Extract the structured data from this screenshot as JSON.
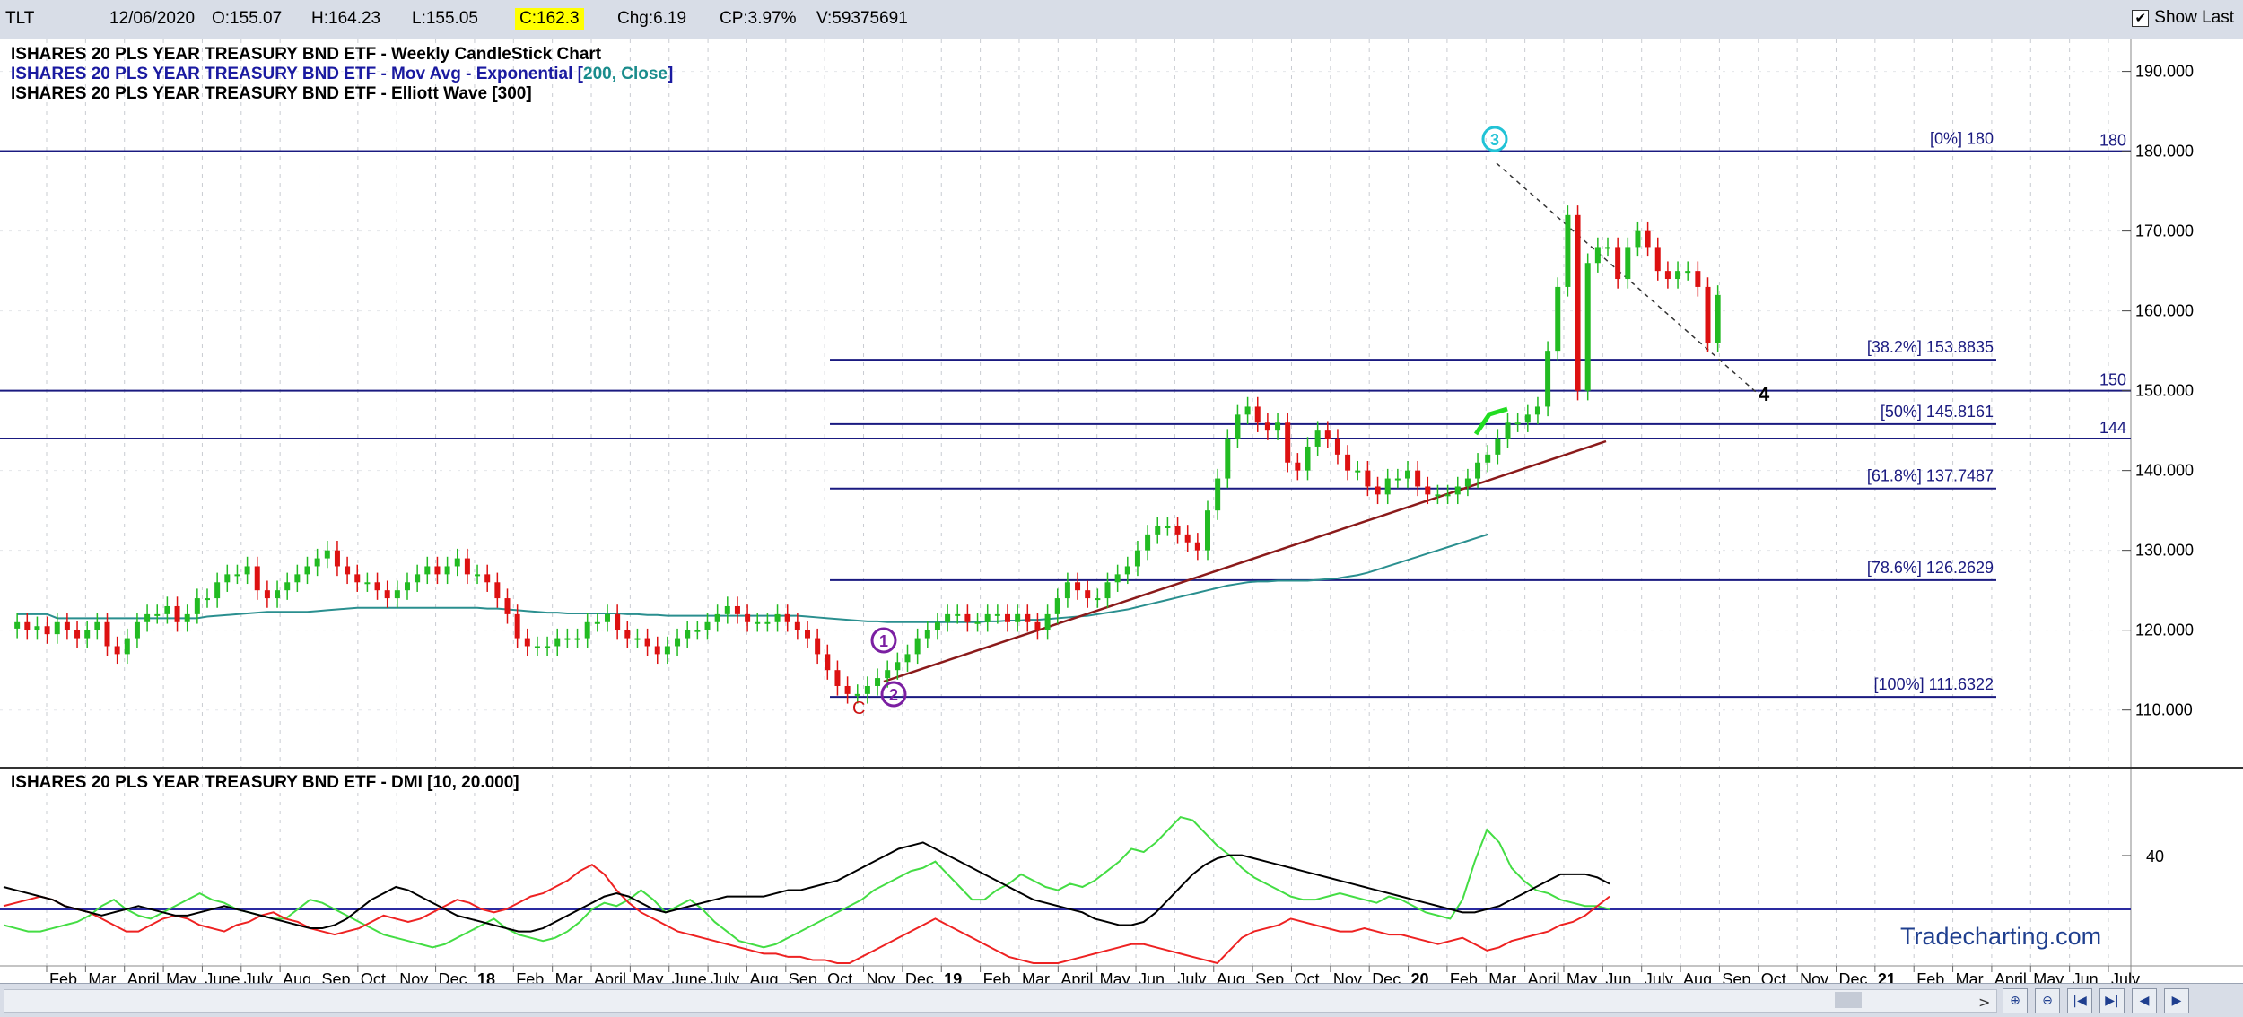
{
  "toolbar": {
    "symbol": "TLT",
    "date": "12/06/2020",
    "open": "O:155.07",
    "high": "H:164.23",
    "low": "L:155.05",
    "close": "C:162.3",
    "change": "Chg:6.19",
    "change_pct": "CP:3.97%",
    "volume": "V:59375691",
    "show_last_label": "Show Last",
    "show_last_checked": true
  },
  "main_panel": {
    "legend": [
      {
        "text": "ISHARES 20 PLS YEAR TREASURY BND ETF - Weekly CandleStick Chart",
        "color": "#000000"
      },
      {
        "text_prefix": "ISHARES 20 PLS YEAR TREASURY BND ETF - Mov Avg - Exponential [",
        "text_param": "200, Close",
        "text_suffix": "]",
        "color": "#1a1aa0",
        "param_color": "#1a8c8c"
      },
      {
        "text": "ISHARES 20 PLS YEAR TREASURY BND ETF - Elliott Wave [300]",
        "color": "#000000"
      }
    ],
    "price_axis": [
      "190.000",
      "180.000",
      "170.000",
      "160.000",
      "150.000",
      "140.000",
      "130.000",
      "120.000",
      "110.000"
    ],
    "fib_levels": [
      {
        "label": "[0%] 180",
        "value": 180
      },
      {
        "label": "[38.2%] 153.8835",
        "value": 153.8835
      },
      {
        "label": "[50%] 145.8161",
        "value": 145.8161
      },
      {
        "label": "[61.8%] 137.7487",
        "value": 137.7487
      },
      {
        "label": "[78.6%] 126.2629",
        "value": 126.2629
      },
      {
        "label": "[100%] 111.6322",
        "value": 111.6322
      }
    ],
    "horizontal_lines": [
      {
        "label": "180",
        "value": 180
      },
      {
        "label": "150",
        "value": 150
      },
      {
        "label": "144",
        "value": 144
      }
    ],
    "wave_labels": {
      "c": "C",
      "one": "1",
      "two": "2",
      "three": "3",
      "four": "4"
    },
    "colors": {
      "up": "#22bb22",
      "down": "#dd1111",
      "ema": "#2a8f8f",
      "hline": "#1a1a80",
      "trend": "#8b1a1a"
    }
  },
  "dmi_panel": {
    "title": "ISHARES 20 PLS YEAR TREASURY BND ETF - DMI [10, 20.000]",
    "axis_label": "40",
    "watermark": "Tradecharting.com"
  },
  "time_axis": [
    {
      "label": "Feb",
      "bold": false
    },
    {
      "label": "Mar",
      "bold": false
    },
    {
      "label": "April",
      "bold": false
    },
    {
      "label": "May",
      "bold": false
    },
    {
      "label": "June",
      "bold": false
    },
    {
      "label": "July",
      "bold": false
    },
    {
      "label": "Aug",
      "bold": false
    },
    {
      "label": "Sep",
      "bold": false
    },
    {
      "label": "Oct",
      "bold": false
    },
    {
      "label": "Nov",
      "bold": false
    },
    {
      "label": "Dec",
      "bold": false
    },
    {
      "label": "18",
      "bold": true
    },
    {
      "label": "Feb",
      "bold": false
    },
    {
      "label": "Mar",
      "bold": false
    },
    {
      "label": "April",
      "bold": false
    },
    {
      "label": "May",
      "bold": false
    },
    {
      "label": "June",
      "bold": false
    },
    {
      "label": "July",
      "bold": false
    },
    {
      "label": "Aug",
      "bold": false
    },
    {
      "label": "Sep",
      "bold": false
    },
    {
      "label": "Oct",
      "bold": false
    },
    {
      "label": "Nov",
      "bold": false
    },
    {
      "label": "Dec",
      "bold": false
    },
    {
      "label": "19",
      "bold": true
    },
    {
      "label": "Feb",
      "bold": false
    },
    {
      "label": "Mar",
      "bold": false
    },
    {
      "label": "April",
      "bold": false
    },
    {
      "label": "May",
      "bold": false
    },
    {
      "label": "Jun",
      "bold": false
    },
    {
      "label": "July",
      "bold": false
    },
    {
      "label": "Aug",
      "bold": false
    },
    {
      "label": "Sep",
      "bold": false
    },
    {
      "label": "Oct",
      "bold": false
    },
    {
      "label": "Nov",
      "bold": false
    },
    {
      "label": "Dec",
      "bold": false
    },
    {
      "label": "20",
      "bold": true
    },
    {
      "label": "Feb",
      "bold": false
    },
    {
      "label": "Mar",
      "bold": false
    },
    {
      "label": "April",
      "bold": false
    },
    {
      "label": "May",
      "bold": false
    },
    {
      "label": "Jun",
      "bold": false
    },
    {
      "label": "July",
      "bold": false
    },
    {
      "label": "Aug",
      "bold": false
    },
    {
      "label": "Sep",
      "bold": false
    },
    {
      "label": "Oct",
      "bold": false
    },
    {
      "label": "Nov",
      "bold": false
    },
    {
      "label": "Dec",
      "bold": false
    },
    {
      "label": "21",
      "bold": true
    },
    {
      "label": "Feb",
      "bold": false
    },
    {
      "label": "Mar",
      "bold": false
    },
    {
      "label": "April",
      "bold": false
    },
    {
      "label": "May",
      "bold": false
    },
    {
      "label": "Jun",
      "bold": false
    },
    {
      "label": "July",
      "bold": false
    }
  ],
  "chart_data": {
    "type": "candlestick",
    "price_range": [
      103,
      194
    ],
    "series": [
      {
        "name": "weekly_close",
        "x_start": 1,
        "values": [
          121,
          120,
          120.5,
          119.5,
          121,
          120,
          119,
          120,
          121,
          118,
          117,
          119,
          121,
          122,
          122,
          123,
          121,
          122,
          124,
          124,
          126,
          127,
          127,
          128,
          125,
          124,
          125,
          126,
          127,
          128,
          129,
          130,
          128,
          127,
          126,
          126,
          125,
          124,
          125,
          126,
          127,
          128,
          127,
          128,
          129,
          127,
          127,
          126,
          124,
          122,
          119,
          118,
          118,
          118,
          119,
          119,
          119,
          121,
          121,
          122,
          120,
          119,
          119,
          118,
          117,
          118,
          119,
          120,
          120,
          121,
          122,
          123,
          122,
          121,
          121,
          121,
          122,
          121,
          120,
          119,
          117,
          115,
          113,
          112,
          112,
          113,
          114,
          115,
          116,
          117,
          119,
          120,
          121,
          122,
          122,
          121,
          121,
          122,
          122,
          121,
          122,
          121,
          120,
          122,
          124,
          126,
          125,
          124,
          124,
          126,
          127,
          128,
          130,
          132,
          133,
          133,
          132,
          131,
          130,
          135,
          139,
          144,
          147,
          148,
          146,
          145,
          146,
          141,
          140,
          143,
          145,
          144,
          142,
          140,
          140,
          138,
          137,
          139,
          139,
          140,
          138,
          137,
          137,
          137,
          138,
          139,
          141,
          142,
          144,
          146,
          146,
          147,
          148,
          155,
          163,
          172,
          150,
          166,
          168,
          168,
          164,
          168,
          170,
          168,
          165,
          164,
          165,
          165,
          163,
          156,
          162
        ]
      },
      {
        "name": "ema_200",
        "x_start": 1,
        "values": [
          122,
          122,
          122,
          122,
          121.5,
          121.5,
          121.5,
          121.5,
          121.5,
          121.5,
          121.5,
          121.5,
          121.5,
          121.5,
          121.5,
          121.5,
          121.5,
          121.5,
          121.5,
          121.7,
          121.8,
          121.9,
          122,
          122.1,
          122.2,
          122.3,
          122.3,
          122.3,
          122.3,
          122.3,
          122.4,
          122.5,
          122.6,
          122.7,
          122.8,
          122.8,
          122.8,
          122.8,
          122.8,
          122.8,
          122.8,
          122.8,
          122.8,
          122.8,
          122.8,
          122.8,
          122.8,
          122.7,
          122.7,
          122.6,
          122.5,
          122.4,
          122.3,
          122.2,
          122.2,
          122.1,
          122.1,
          122.1,
          122.1,
          122.1,
          122.1,
          122,
          122,
          121.9,
          121.9,
          121.8,
          121.8,
          121.8,
          121.8,
          121.8,
          121.8,
          121.8,
          121.8,
          121.8,
          121.8,
          121.8,
          121.8,
          121.8,
          121.8,
          121.7,
          121.6,
          121.5,
          121.4,
          121.3,
          121.2,
          121.1,
          121.1,
          121,
          121,
          121,
          121,
          121,
          121,
          121,
          121,
          121,
          121,
          121.1,
          121.1,
          121.2,
          121.2,
          121.3,
          121.3,
          121.4,
          121.5,
          121.6,
          121.7,
          121.8,
          122,
          122.2,
          122.4,
          122.6,
          122.9,
          123.2,
          123.5,
          123.8,
          124.1,
          124.4,
          124.7,
          125,
          125.3,
          125.6,
          125.8,
          126,
          126.1,
          126.1,
          126.2,
          126.2,
          126.2,
          126.2,
          126.3,
          126.4,
          126.5,
          126.7,
          126.9,
          127.2,
          127.6,
          128,
          128.4,
          128.8,
          129.2,
          129.6,
          130,
          130.4,
          130.8,
          131.2,
          131.6,
          132
        ]
      },
      {
        "name": "dmi_plus",
        "x_start": 1,
        "values": [
          22,
          21,
          20,
          20,
          21,
          22,
          23,
          25,
          28,
          30,
          27,
          25,
          24,
          26,
          28,
          30,
          32,
          30,
          29,
          27,
          26,
          25,
          24,
          24,
          27,
          30,
          29,
          27,
          25,
          23,
          21,
          19,
          18,
          17,
          16,
          15,
          16,
          18,
          20,
          22,
          24,
          21,
          19,
          18,
          17,
          18,
          20,
          23,
          27,
          29,
          28,
          30,
          33,
          30,
          26,
          28,
          30,
          27,
          23,
          20,
          17,
          16,
          15,
          16,
          18,
          20,
          22,
          24,
          26,
          28,
          30,
          33,
          35,
          37,
          39,
          40,
          42,
          38,
          34,
          30,
          30,
          33,
          35,
          38,
          36,
          34,
          33,
          35,
          34,
          36,
          39,
          42,
          46,
          45,
          48,
          52,
          56,
          55,
          51,
          47,
          44,
          40,
          37,
          35,
          33,
          31,
          30,
          30,
          31,
          32,
          31,
          30,
          29,
          31,
          30,
          28,
          26,
          25,
          24,
          30,
          42,
          52,
          48,
          40,
          36,
          33,
          32,
          30,
          29,
          28,
          28,
          27
        ]
      },
      {
        "name": "dmi_minus",
        "x_start": 1,
        "values": [
          28,
          29,
          30,
          31,
          30,
          28,
          27,
          26,
          24,
          22,
          20,
          20,
          22,
          24,
          25,
          24,
          22,
          21,
          20,
          22,
          23,
          25,
          26,
          24,
          23,
          21,
          20,
          19,
          20,
          21,
          23,
          25,
          24,
          23,
          24,
          26,
          28,
          30,
          29,
          27,
          26,
          27,
          29,
          31,
          32,
          34,
          36,
          39,
          41,
          38,
          33,
          29,
          26,
          24,
          22,
          20,
          19,
          18,
          17,
          16,
          15,
          14,
          13,
          13,
          12,
          12,
          11,
          11,
          10,
          10,
          12,
          14,
          16,
          18,
          20,
          22,
          24,
          22,
          20,
          18,
          16,
          14,
          12,
          11,
          10,
          10,
          10,
          11,
          12,
          13,
          14,
          15,
          16,
          16,
          15,
          14,
          13,
          12,
          11,
          10,
          14,
          18,
          20,
          21,
          22,
          24,
          23,
          22,
          21,
          20,
          20,
          21,
          20,
          19,
          19,
          18,
          17,
          16,
          17,
          18,
          16,
          14,
          15,
          17,
          18,
          19,
          20,
          22,
          23,
          25,
          28,
          31
        ]
      },
      {
        "name": "adx",
        "x_start": 1,
        "values": [
          34,
          33,
          32,
          31,
          30,
          28,
          27,
          26,
          25,
          26,
          27,
          28,
          27,
          26,
          25,
          25,
          26,
          27,
          28,
          27,
          26,
          25,
          24,
          23,
          22,
          21,
          21,
          22,
          24,
          27,
          30,
          32,
          34,
          33,
          31,
          29,
          27,
          25,
          24,
          23,
          22,
          21,
          20,
          20,
          21,
          23,
          25,
          27,
          29,
          31,
          32,
          31,
          29,
          27,
          26,
          27,
          28,
          29,
          30,
          31,
          31,
          31,
          31,
          32,
          33,
          33,
          34,
          35,
          36,
          38,
          40,
          42,
          44,
          46,
          47,
          48,
          46,
          44,
          42,
          40,
          38,
          36,
          34,
          32,
          30,
          29,
          28,
          27,
          26,
          24,
          23,
          22,
          22,
          23,
          26,
          30,
          34,
          38,
          41,
          43,
          44,
          44,
          43,
          42,
          41,
          40,
          39,
          38,
          37,
          36,
          35,
          34,
          33,
          32,
          31,
          30,
          29,
          28,
          27,
          26,
          26,
          27,
          28,
          30,
          32,
          34,
          36,
          38,
          38,
          38,
          37,
          35
        ]
      }
    ]
  }
}
